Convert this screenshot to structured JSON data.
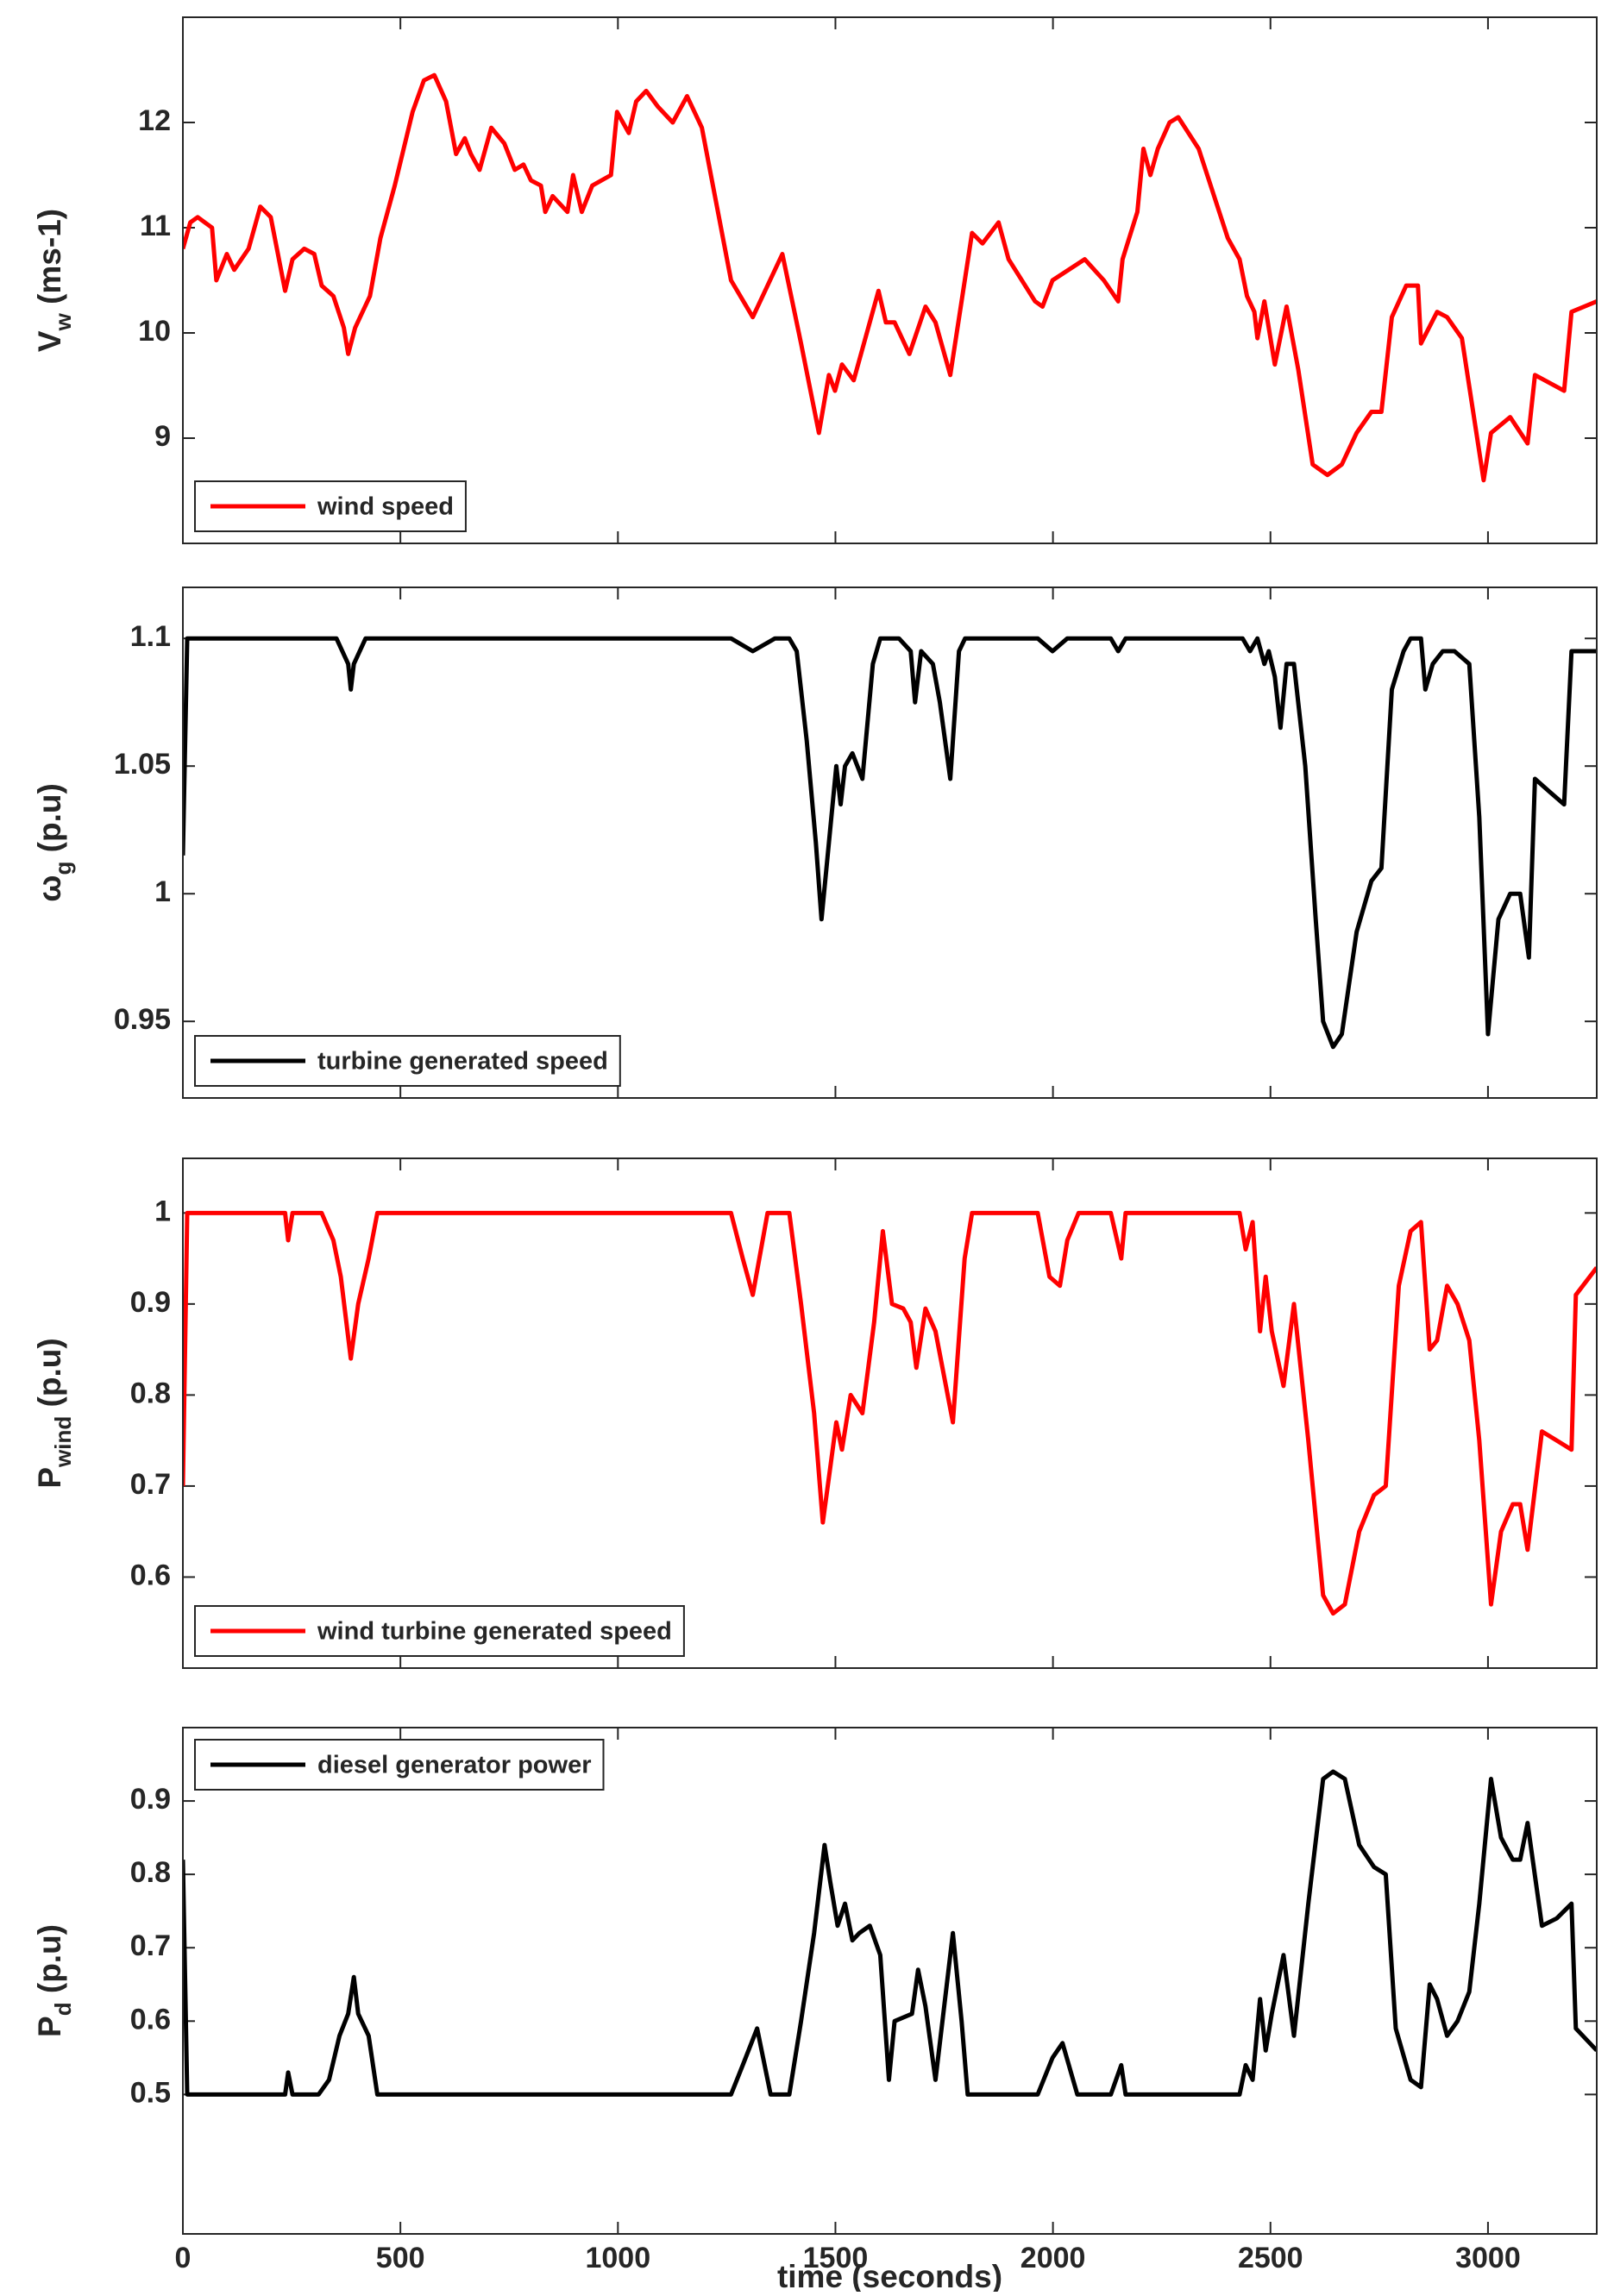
{
  "chart_data": [
    {
      "type": "line",
      "ylabel": {
        "text": "V",
        "sub": "w",
        "unit": " (ms-1)"
      },
      "x": [
        0,
        17,
        34,
        67,
        77,
        101,
        118,
        151,
        178,
        202,
        235,
        252,
        279,
        302,
        319,
        346,
        370,
        380,
        396,
        413,
        430,
        454,
        487,
        528,
        554,
        578,
        605,
        628,
        648,
        662,
        682,
        709,
        739,
        763,
        783,
        800,
        823,
        833,
        850,
        884,
        897,
        917,
        941,
        984,
        998,
        1025,
        1042,
        1065,
        1092,
        1126,
        1159,
        1193,
        1260,
        1310,
        1378,
        1421,
        1462,
        1485,
        1499,
        1515,
        1542,
        1599,
        1616,
        1636,
        1670,
        1707,
        1730,
        1764,
        1814,
        1838,
        1875,
        1898,
        1959,
        1976,
        1999,
        2073,
        2117,
        2150,
        2160,
        2194,
        2208,
        2224,
        2241,
        2268,
        2288,
        2335,
        2402,
        2429,
        2446,
        2463,
        2470,
        2486,
        2510,
        2537,
        2564,
        2597,
        2631,
        2664,
        2698,
        2732,
        2755,
        2779,
        2812,
        2839,
        2846,
        2883,
        2906,
        2940,
        2990,
        3007,
        3051,
        3091,
        3108,
        3175,
        3192,
        3250
      ],
      "series": [
        {
          "name": "wind speed",
          "color": "#ff0000",
          "values": [
            10.8,
            11.05,
            11.1,
            11.0,
            10.5,
            10.75,
            10.6,
            10.8,
            11.2,
            11.1,
            10.4,
            10.7,
            10.8,
            10.75,
            10.45,
            10.35,
            10.05,
            9.8,
            10.05,
            10.2,
            10.35,
            10.9,
            11.4,
            12.1,
            12.4,
            12.45,
            12.2,
            11.7,
            11.85,
            11.7,
            11.55,
            11.95,
            11.8,
            11.55,
            11.6,
            11.45,
            11.4,
            11.15,
            11.3,
            11.15,
            11.5,
            11.15,
            11.4,
            11.5,
            12.1,
            11.9,
            12.2,
            12.3,
            12.15,
            12.0,
            12.25,
            11.95,
            10.5,
            10.15,
            10.75,
            9.9,
            9.05,
            9.6,
            9.45,
            9.7,
            9.55,
            10.4,
            10.1,
            10.1,
            9.8,
            10.25,
            10.1,
            9.6,
            10.95,
            10.85,
            11.05,
            10.7,
            10.3,
            10.25,
            10.5,
            10.7,
            10.5,
            10.3,
            10.7,
            11.15,
            11.75,
            11.5,
            11.75,
            12.0,
            12.05,
            11.75,
            10.9,
            10.7,
            10.35,
            10.2,
            9.95,
            10.3,
            9.7,
            10.25,
            9.65,
            8.75,
            8.65,
            8.75,
            9.05,
            9.25,
            9.25,
            10.15,
            10.45,
            10.45,
            9.9,
            10.2,
            10.15,
            9.95,
            8.6,
            9.05,
            9.2,
            8.95,
            9.6,
            9.45,
            10.2,
            10.3
          ]
        }
      ],
      "xlim": [
        0,
        3250
      ],
      "ylim": [
        8,
        13
      ],
      "yticks": [
        9,
        10,
        11,
        12
      ],
      "legend": "lower left"
    },
    {
      "type": "line",
      "ylabel": {
        "text": "ω",
        "sub": "g",
        "unit": " (p.u)"
      },
      "x": [
        0,
        10,
        252,
        353,
        380,
        386,
        393,
        420,
        588,
        924,
        1260,
        1310,
        1361,
        1394,
        1411,
        1434,
        1455,
        1468,
        1485,
        1502,
        1512,
        1522,
        1539,
        1562,
        1586,
        1603,
        1646,
        1673,
        1683,
        1697,
        1724,
        1740,
        1764,
        1784,
        1798,
        1965,
        1999,
        2033,
        2133,
        2150,
        2167,
        2436,
        2453,
        2470,
        2486,
        2496,
        2510,
        2523,
        2537,
        2554,
        2580,
        2604,
        2621,
        2644,
        2664,
        2698,
        2732,
        2755,
        2779,
        2806,
        2822,
        2846,
        2856,
        2873,
        2896,
        2923,
        2957,
        2980,
        3000,
        3024,
        3051,
        3074,
        3094,
        3108,
        3141,
        3175,
        3192,
        3250
      ],
      "series": [
        {
          "name": "turbine generated speed",
          "color": "#000000",
          "values": [
            1.015,
            1.1,
            1.1,
            1.1,
            1.09,
            1.08,
            1.09,
            1.1,
            1.1,
            1.1,
            1.1,
            1.095,
            1.1,
            1.1,
            1.095,
            1.06,
            1.02,
            0.99,
            1.02,
            1.05,
            1.035,
            1.05,
            1.055,
            1.045,
            1.09,
            1.1,
            1.1,
            1.095,
            1.075,
            1.095,
            1.09,
            1.075,
            1.045,
            1.095,
            1.1,
            1.1,
            1.095,
            1.1,
            1.1,
            1.095,
            1.1,
            1.1,
            1.095,
            1.1,
            1.09,
            1.095,
            1.085,
            1.065,
            1.09,
            1.09,
            1.05,
            0.99,
            0.95,
            0.94,
            0.945,
            0.985,
            1.005,
            1.01,
            1.08,
            1.095,
            1.1,
            1.1,
            1.08,
            1.09,
            1.095,
            1.095,
            1.09,
            1.03,
            0.945,
            0.99,
            1.0,
            1.0,
            0.975,
            1.045,
            1.04,
            1.035,
            1.095,
            1.095
          ]
        }
      ],
      "xlim": [
        0,
        3250
      ],
      "ylim": [
        0.92,
        1.12
      ],
      "yticks": [
        0.95,
        1,
        1.05,
        1.1
      ],
      "legend": "lower left"
    },
    {
      "type": "line",
      "ylabel": {
        "text": "P",
        "sub": "wind",
        "unit": " (p.u)"
      },
      "x": [
        0,
        10,
        235,
        242,
        252,
        319,
        346,
        363,
        386,
        403,
        427,
        447,
        588,
        1260,
        1287,
        1310,
        1344,
        1394,
        1421,
        1451,
        1471,
        1488,
        1502,
        1515,
        1535,
        1562,
        1589,
        1609,
        1630,
        1656,
        1673,
        1686,
        1707,
        1730,
        1770,
        1797,
        1814,
        1965,
        1992,
        2016,
        2033,
        2059,
        2133,
        2157,
        2167,
        2429,
        2443,
        2459,
        2476,
        2489,
        2503,
        2530,
        2554,
        2587,
        2621,
        2644,
        2671,
        2704,
        2738,
        2765,
        2795,
        2822,
        2846,
        2866,
        2883,
        2906,
        2930,
        2957,
        2980,
        3007,
        3030,
        3057,
        3074,
        3091,
        3124,
        3158,
        3192,
        3202,
        3250
      ],
      "series": [
        {
          "name": "wind turbine generated speed",
          "color": "#ff0000",
          "values": [
            0.7,
            1.0,
            1.0,
            0.97,
            1.0,
            1.0,
            0.97,
            0.93,
            0.84,
            0.9,
            0.95,
            1.0,
            1.0,
            1.0,
            0.95,
            0.91,
            1.0,
            1.0,
            0.9,
            0.78,
            0.66,
            0.72,
            0.77,
            0.74,
            0.8,
            0.78,
            0.88,
            0.98,
            0.9,
            0.895,
            0.88,
            0.83,
            0.895,
            0.87,
            0.77,
            0.95,
            1.0,
            1.0,
            0.93,
            0.92,
            0.97,
            1.0,
            1.0,
            0.95,
            1.0,
            1.0,
            0.96,
            0.99,
            0.87,
            0.93,
            0.87,
            0.81,
            0.9,
            0.75,
            0.58,
            0.56,
            0.57,
            0.65,
            0.69,
            0.7,
            0.92,
            0.98,
            0.99,
            0.85,
            0.86,
            0.92,
            0.9,
            0.86,
            0.75,
            0.57,
            0.65,
            0.68,
            0.68,
            0.63,
            0.76,
            0.75,
            0.74,
            0.91,
            0.94
          ]
        }
      ],
      "xlim": [
        0,
        3250
      ],
      "ylim": [
        0.5,
        1.06
      ],
      "yticks": [
        0.6,
        0.7,
        0.8,
        0.9,
        1
      ],
      "legend": "lower left"
    },
    {
      "type": "line",
      "ylabel": {
        "text": "P",
        "sub": "d",
        "unit": " (p.u)"
      },
      "xlabel": "time (seconds)",
      "x": [
        0,
        10,
        235,
        242,
        252,
        312,
        336,
        360,
        380,
        393,
        403,
        427,
        447,
        588,
        1260,
        1287,
        1320,
        1351,
        1394,
        1421,
        1451,
        1475,
        1488,
        1505,
        1522,
        1539,
        1555,
        1579,
        1603,
        1623,
        1636,
        1676,
        1690,
        1707,
        1730,
        1770,
        1790,
        1804,
        1965,
        1999,
        2022,
        2056,
        2133,
        2157,
        2167,
        2429,
        2443,
        2459,
        2476,
        2489,
        2503,
        2530,
        2554,
        2587,
        2621,
        2644,
        2671,
        2704,
        2738,
        2765,
        2788,
        2822,
        2846,
        2866,
        2883,
        2906,
        2930,
        2957,
        2980,
        3007,
        3030,
        3057,
        3074,
        3091,
        3124,
        3158,
        3192,
        3202,
        3250
      ],
      "series": [
        {
          "name": "diesel generator power",
          "color": "#000000",
          "values": [
            0.82,
            0.5,
            0.5,
            0.53,
            0.5,
            0.5,
            0.52,
            0.58,
            0.61,
            0.66,
            0.61,
            0.58,
            0.5,
            0.5,
            0.5,
            0.54,
            0.59,
            0.5,
            0.5,
            0.6,
            0.72,
            0.84,
            0.79,
            0.73,
            0.76,
            0.71,
            0.72,
            0.73,
            0.69,
            0.52,
            0.6,
            0.61,
            0.67,
            0.62,
            0.52,
            0.72,
            0.6,
            0.5,
            0.5,
            0.55,
            0.57,
            0.5,
            0.5,
            0.54,
            0.5,
            0.5,
            0.54,
            0.52,
            0.63,
            0.56,
            0.61,
            0.69,
            0.58,
            0.76,
            0.93,
            0.94,
            0.93,
            0.84,
            0.81,
            0.8,
            0.59,
            0.52,
            0.51,
            0.65,
            0.63,
            0.58,
            0.6,
            0.64,
            0.76,
            0.93,
            0.85,
            0.82,
            0.82,
            0.87,
            0.73,
            0.74,
            0.76,
            0.59,
            0.56
          ]
        }
      ],
      "xlim": [
        0,
        3250
      ],
      "ylim": [
        0.31,
        1.0
      ],
      "yticks": [
        0.5,
        0.6,
        0.7,
        0.8,
        0.9
      ],
      "xticks": [
        0,
        500,
        1000,
        1500,
        2000,
        2500,
        3000
      ],
      "legend": "upper left"
    }
  ]
}
